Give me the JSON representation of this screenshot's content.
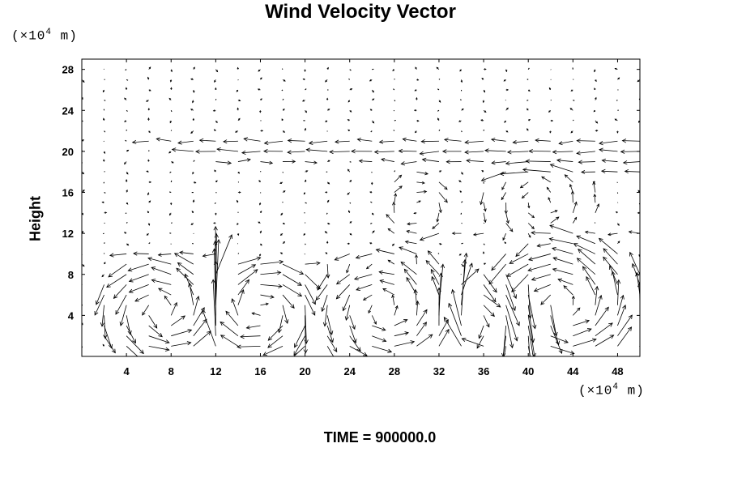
{
  "chart_data": {
    "type": "vector",
    "title": "Wind Velocity Vector",
    "ylabel": "Height",
    "x_unit": {
      "prefix": "(×10",
      "exp": "4",
      "suffix": " m)"
    },
    "y_unit": {
      "prefix": "(×10",
      "exp": "4",
      "suffix": " m)"
    },
    "xlim": [
      0,
      50
    ],
    "ylim": [
      0,
      29
    ],
    "x_ticks": [
      4,
      8,
      12,
      16,
      20,
      24,
      28,
      32,
      36,
      40,
      44,
      48
    ],
    "y_ticks": [
      4,
      8,
      12,
      16,
      20,
      24,
      28
    ],
    "grid": false,
    "footer": "TIME = 900000.0",
    "field_grid": {
      "x_start": 0,
      "x_step": 2,
      "x_count": 26,
      "y_start": 1,
      "y_step": 1,
      "y_count": 28
    },
    "features": {
      "jets": [
        {
          "y": 21,
          "x_from": 6,
          "x_to": 50,
          "u": -2.2
        },
        {
          "y": 20,
          "x_from": 10,
          "x_to": 50,
          "u": -2.6
        },
        {
          "y": 19,
          "x_from": 12,
          "x_to": 20,
          "u": 1.8
        },
        {
          "y": 19,
          "x_from": 26,
          "x_to": 50,
          "u": -2.0
        },
        {
          "y": 18,
          "x_from": 38,
          "x_to": 50,
          "u": -2.2
        },
        {
          "y": 10,
          "x_from": 4,
          "x_to": 12,
          "u": -2.0
        },
        {
          "y": 9,
          "x_from": 20,
          "x_to": 30,
          "u": 2.0
        },
        {
          "y": 12,
          "x_from": 32,
          "x_to": 50,
          "u": -1.2
        }
      ],
      "vortices": [
        {
          "cx": 7,
          "cy": 4.5,
          "r": 4.5,
          "strength": 3.0,
          "sense": 1
        },
        {
          "cx": 16,
          "cy": 4.5,
          "r": 4.5,
          "strength": 3.0,
          "sense": -1
        },
        {
          "cx": 27,
          "cy": 4.5,
          "r": 5.5,
          "strength": 2.6,
          "sense": 1
        },
        {
          "cx": 37,
          "cy": 4.0,
          "r": 4.0,
          "strength": 3.0,
          "sense": -1
        },
        {
          "cx": 43,
          "cy": 5.0,
          "r": 6.0,
          "strength": 3.2,
          "sense": 1
        },
        {
          "cx": 30,
          "cy": 14.5,
          "r": 3.0,
          "strength": 1.4,
          "sense": -1
        },
        {
          "cx": 41,
          "cy": 15.0,
          "r": 4.0,
          "strength": 1.4,
          "sense": 1
        }
      ],
      "updrafts": [
        {
          "x": 12,
          "y_from": 1,
          "y_to": 9,
          "v": 3.0
        },
        {
          "x": 34,
          "y_from": 1,
          "y_to": 6,
          "v": 2.0
        }
      ]
    }
  }
}
